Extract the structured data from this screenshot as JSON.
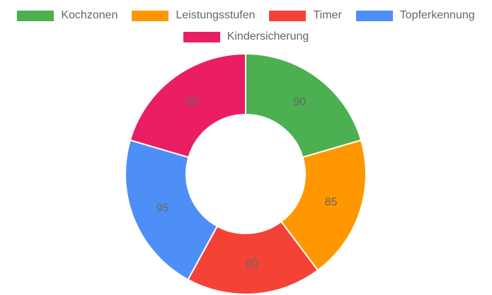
{
  "chart_data": {
    "type": "pie",
    "variant": "doughnut",
    "categories": [
      "Kochzonen",
      "Leistungsstufen",
      "Timer",
      "Topferkennung",
      "Kindersicherung"
    ],
    "values": [
      90,
      85,
      80,
      95,
      90
    ],
    "data_labels": [
      "90",
      "85",
      "80",
      "95",
      "90"
    ],
    "colors": [
      "#4caf50",
      "#ff9800",
      "#f44336",
      "#4e8ef7",
      "#e91e63"
    ],
    "legend": {
      "position": "top",
      "rows": [
        [
          "Kochzonen",
          "Leistungsstufen",
          "Timer",
          "Topferkennung"
        ],
        [
          "Kindersicherung"
        ]
      ]
    }
  }
}
